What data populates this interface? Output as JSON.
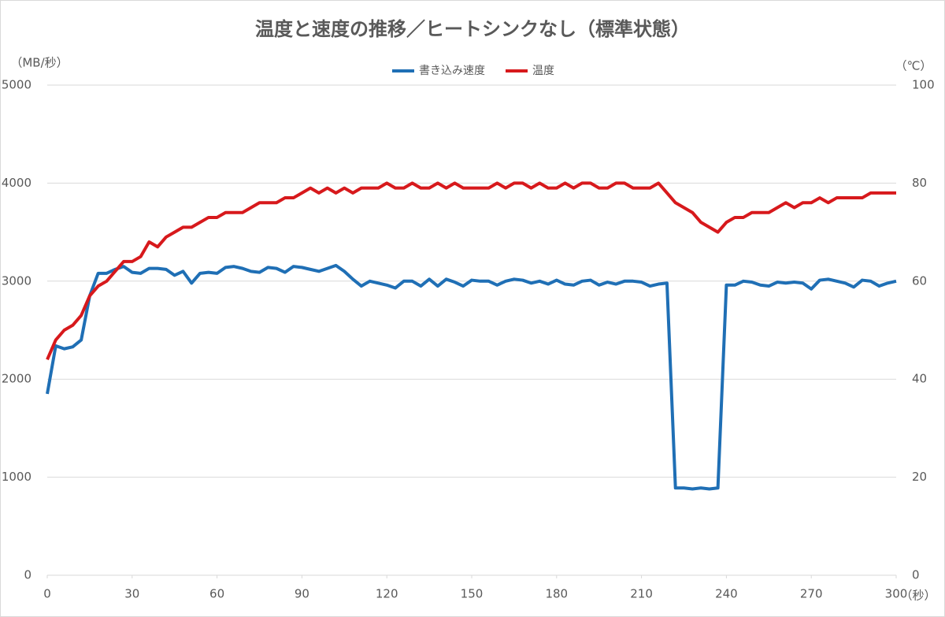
{
  "chart_data": {
    "type": "line",
    "title": "温度と速度の推移／ヒートシンクなし（標準状態）",
    "y_label": "（MB/秒）",
    "y2_label": "（℃）",
    "x_label": "（秒）",
    "grid": true,
    "legend": "top",
    "x": [
      0,
      3,
      6,
      9,
      12,
      15,
      18,
      21,
      24,
      27,
      30,
      33,
      36,
      39,
      42,
      45,
      48,
      51,
      54,
      57,
      60,
      63,
      66,
      69,
      72,
      75,
      78,
      81,
      84,
      87,
      90,
      93,
      96,
      99,
      102,
      105,
      108,
      111,
      114,
      117,
      120,
      123,
      126,
      129,
      132,
      135,
      138,
      141,
      144,
      147,
      150,
      153,
      156,
      159,
      162,
      165,
      168,
      171,
      174,
      177,
      180,
      183,
      186,
      189,
      192,
      195,
      198,
      201,
      204,
      207,
      210,
      213,
      216,
      219,
      222,
      225,
      228,
      231,
      234,
      237,
      240,
      243,
      246,
      249,
      252,
      255,
      258,
      261,
      264,
      267,
      270,
      273,
      276,
      279,
      282,
      285,
      288,
      291,
      294,
      297,
      300
    ],
    "xlim": [
      0,
      300
    ],
    "xticks": [
      0,
      30,
      60,
      90,
      120,
      150,
      180,
      210,
      240,
      270,
      300
    ],
    "ylim": [
      0,
      5000
    ],
    "yticks": [
      0,
      1000,
      2000,
      3000,
      4000,
      5000
    ],
    "y2lim": [
      0,
      100
    ],
    "y2ticks": [
      0,
      20,
      40,
      60,
      80,
      100
    ],
    "series": [
      {
        "name": "書き込み速度",
        "color": "#1f6fb5",
        "axis": "y",
        "values": [
          1850,
          2340,
          2310,
          2330,
          2400,
          2850,
          3080,
          3080,
          3120,
          3150,
          3090,
          3080,
          3130,
          3130,
          3120,
          3060,
          3100,
          2980,
          3080,
          3090,
          3080,
          3140,
          3150,
          3130,
          3100,
          3090,
          3140,
          3130,
          3090,
          3150,
          3140,
          3120,
          3100,
          3130,
          3160,
          3100,
          3020,
          2950,
          3000,
          2980,
          2960,
          2930,
          3000,
          3000,
          2950,
          3020,
          2950,
          3020,
          2990,
          2950,
          3010,
          3000,
          3000,
          2960,
          3000,
          3020,
          3010,
          2980,
          3000,
          2970,
          3010,
          2970,
          2960,
          3000,
          3010,
          2960,
          2990,
          2970,
          3000,
          3000,
          2990,
          2950,
          2970,
          2980,
          890,
          890,
          880,
          890,
          880,
          890,
          2960,
          2960,
          3000,
          2990,
          2960,
          2950,
          2990,
          2980,
          2990,
          2980,
          2920,
          3010,
          3020,
          3000,
          2980,
          2940,
          3010,
          3000,
          2950,
          2980,
          3000
        ]
      },
      {
        "name": "温度",
        "color": "#d7191c",
        "axis": "y2",
        "values": [
          44,
          48,
          50,
          51,
          53,
          57,
          59,
          60,
          62,
          64,
          64,
          65,
          68,
          67,
          69,
          70,
          71,
          71,
          72,
          73,
          73,
          74,
          74,
          74,
          75,
          76,
          76,
          76,
          77,
          77,
          78,
          79,
          78,
          79,
          78,
          79,
          78,
          79,
          79,
          79,
          80,
          79,
          79,
          80,
          79,
          79,
          80,
          79,
          80,
          79,
          79,
          79,
          79,
          80,
          79,
          80,
          80,
          79,
          80,
          79,
          79,
          80,
          79,
          80,
          80,
          79,
          79,
          80,
          80,
          79,
          79,
          79,
          80,
          78,
          76,
          75,
          74,
          72,
          71,
          70,
          72,
          73,
          73,
          74,
          74,
          74,
          75,
          76,
          75,
          76,
          76,
          77,
          76,
          77,
          77,
          77,
          77,
          78,
          78,
          78,
          78
        ]
      }
    ]
  }
}
